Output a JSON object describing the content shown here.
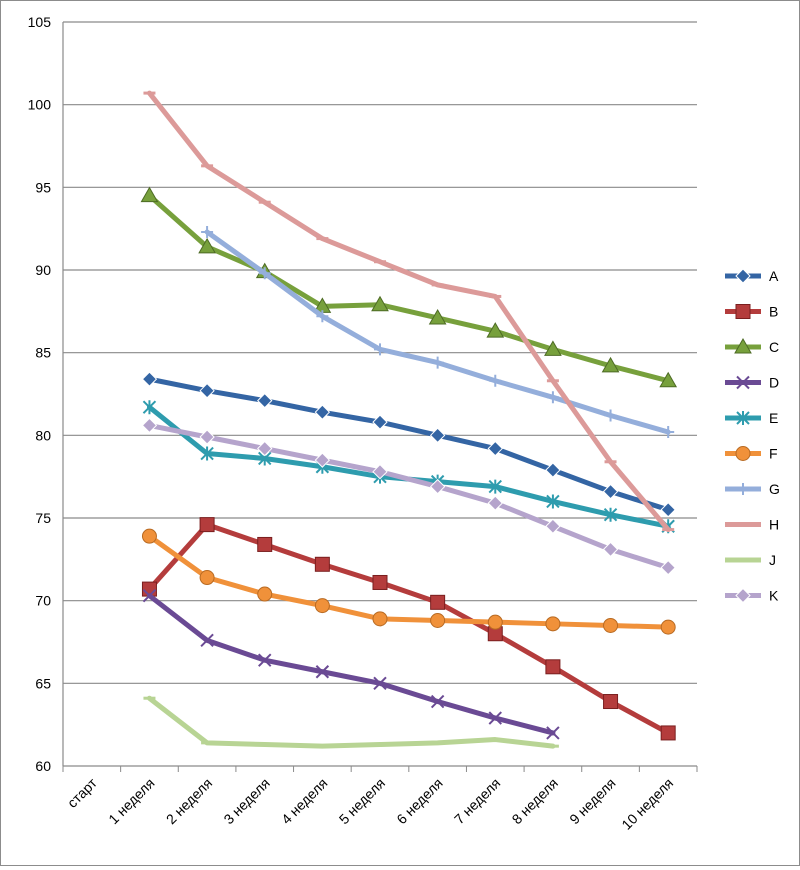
{
  "chart_data": {
    "type": "line",
    "title": "",
    "xlabel": "",
    "ylabel": "",
    "ylim": [
      60,
      105
    ],
    "y_ticks": [
      "60",
      "65",
      "70",
      "75",
      "80",
      "85",
      "90",
      "95",
      "100",
      "105"
    ],
    "grid": true,
    "legend_position": "right",
    "categories": [
      "старт",
      "1 неделя",
      "2 неделя",
      "3 неделя",
      "4 неделя",
      "5 неделя",
      "6 неделя",
      "7 неделя",
      "8 неделя",
      "9 неделя",
      "10 неделя"
    ],
    "series": [
      {
        "name": "A",
        "color": "#3465a4",
        "marker": "diamond",
        "values": [
          null,
          83.4,
          82.7,
          82.1,
          81.4,
          80.8,
          80.0,
          79.2,
          77.9,
          76.6,
          75.5
        ]
      },
      {
        "name": "B",
        "color": "#b43c3c",
        "marker": "square",
        "values": [
          null,
          70.7,
          74.6,
          73.4,
          72.2,
          71.1,
          69.9,
          68.0,
          66.0,
          63.9,
          62.0
        ]
      },
      {
        "name": "C",
        "color": "#77a03c",
        "marker": "triangle",
        "values": [
          null,
          94.5,
          91.4,
          89.9,
          87.8,
          87.9,
          87.1,
          86.3,
          85.2,
          84.2,
          83.3
        ]
      },
      {
        "name": "D",
        "color": "#6a4a94",
        "marker": "x",
        "values": [
          null,
          70.3,
          67.6,
          66.4,
          65.7,
          65.0,
          63.9,
          62.9,
          62.0,
          null,
          null
        ]
      },
      {
        "name": "E",
        "color": "#2e9cae",
        "marker": "star",
        "values": [
          null,
          81.7,
          78.9,
          78.6,
          78.1,
          77.5,
          77.2,
          76.9,
          76.0,
          75.2,
          74.5
        ]
      },
      {
        "name": "F",
        "color": "#f0913a",
        "marker": "circle",
        "values": [
          null,
          73.9,
          71.4,
          70.4,
          69.7,
          68.9,
          68.8,
          68.7,
          68.6,
          68.5,
          68.4
        ]
      },
      {
        "name": "G",
        "color": "#94aedb",
        "marker": "plus",
        "values": [
          null,
          null,
          92.3,
          89.8,
          87.2,
          85.2,
          84.4,
          83.3,
          82.3,
          81.2,
          80.2
        ]
      },
      {
        "name": "H",
        "color": "#dc9a99",
        "marker": "dash",
        "values": [
          null,
          100.7,
          96.3,
          94.1,
          91.9,
          90.5,
          89.1,
          88.4,
          83.3,
          78.4,
          74.3
        ]
      },
      {
        "name": "J",
        "color": "#b8d494",
        "marker": "dash",
        "values": [
          null,
          64.1,
          61.4,
          61.3,
          61.2,
          61.3,
          61.4,
          61.6,
          61.2,
          null,
          null
        ]
      },
      {
        "name": "K",
        "color": "#b5a4cc",
        "marker": "diamond",
        "values": [
          null,
          80.6,
          79.9,
          79.2,
          78.5,
          77.8,
          76.9,
          75.9,
          74.5,
          73.1,
          72.0
        ]
      }
    ]
  }
}
